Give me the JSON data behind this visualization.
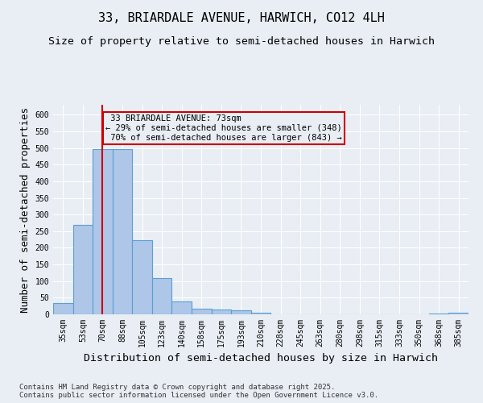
{
  "title": "33, BRIARDALE AVENUE, HARWICH, CO12 4LH",
  "subtitle": "Size of property relative to semi-detached houses in Harwich",
  "xlabel": "Distribution of semi-detached houses by size in Harwich",
  "ylabel": "Number of semi-detached properties",
  "footnote": "Contains HM Land Registry data © Crown copyright and database right 2025.\nContains public sector information licensed under the Open Government Licence v3.0.",
  "bins": [
    "35sqm",
    "53sqm",
    "70sqm",
    "88sqm",
    "105sqm",
    "123sqm",
    "140sqm",
    "158sqm",
    "175sqm",
    "193sqm",
    "210sqm",
    "228sqm",
    "245sqm",
    "263sqm",
    "280sqm",
    "298sqm",
    "315sqm",
    "333sqm",
    "350sqm",
    "368sqm",
    "385sqm"
  ],
  "values": [
    35,
    268,
    497,
    497,
    222,
    108,
    38,
    18,
    15,
    13,
    5,
    0,
    0,
    0,
    0,
    0,
    0,
    0,
    0,
    3,
    4
  ],
  "bar_color": "#aec6e8",
  "bar_edge_color": "#5a9fd4",
  "property_bin_index": 2,
  "property_label": "33 BRIARDALE AVENUE: 73sqm",
  "pct_smaller": 29,
  "pct_smaller_count": 348,
  "pct_larger": 70,
  "pct_larger_count": 843,
  "vline_color": "#cc0000",
  "annotation_box_color": "#cc0000",
  "ylim": [
    0,
    630
  ],
  "yticks": [
    0,
    50,
    100,
    150,
    200,
    250,
    300,
    350,
    400,
    450,
    500,
    550,
    600
  ],
  "bg_color": "#e8eef4",
  "grid_color": "#ffffff",
  "title_fontsize": 11,
  "subtitle_fontsize": 9.5,
  "annotation_fontsize": 7.5,
  "axis_label_fontsize": 9,
  "tick_fontsize": 7,
  "footnote_fontsize": 6.5
}
